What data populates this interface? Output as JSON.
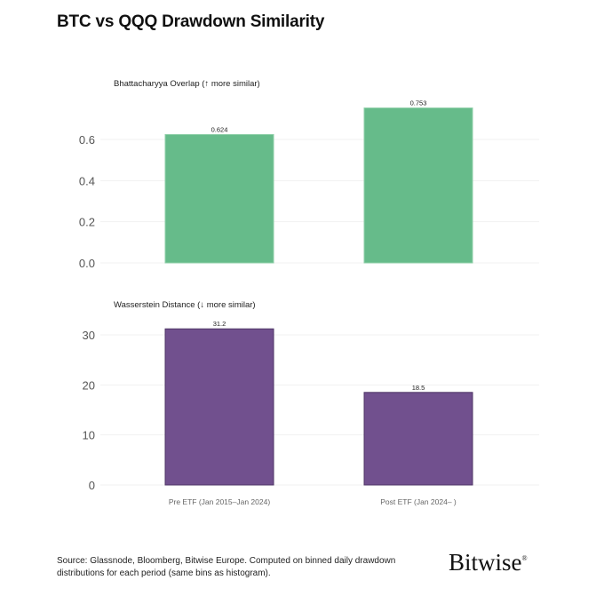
{
  "title": "BTC vs QQQ Drawdown Similarity",
  "source": "Source: Glassnode, Bloomberg, Bitwise Europe. Computed on binned daily drawdown distributions for each period (same bins as histogram).",
  "logo": "Bitwise",
  "chart_data": [
    {
      "type": "bar",
      "title": "Bhattacharyya Overlap (↑ more similar)",
      "categories": [
        "Pre ETF (Jan 2015–Jan 2024)",
        "Post ETF (Jan 2024– )"
      ],
      "values": [
        0.624,
        0.753
      ],
      "value_labels": [
        "0.624",
        "0.753"
      ],
      "yticks": [
        0.0,
        0.2,
        0.4,
        0.6
      ],
      "ytick_labels": [
        "0.0",
        "0.2",
        "0.4",
        "0.6"
      ],
      "ylim": [
        0,
        0.8
      ],
      "grid": true,
      "color": "#66BB8A"
    },
    {
      "type": "bar",
      "title": "Wasserstein Distance (↓ more similar)",
      "categories": [
        "Pre ETF (Jan 2015–Jan 2024)",
        "Post ETF (Jan 2024– )"
      ],
      "values": [
        31.2,
        18.5
      ],
      "value_labels": [
        "31.2",
        "18.5"
      ],
      "yticks": [
        0,
        10,
        20,
        30
      ],
      "ytick_labels": [
        "0",
        "10",
        "20",
        "30"
      ],
      "ylim": [
        0,
        33
      ],
      "grid": true,
      "color": "#71508E"
    }
  ]
}
